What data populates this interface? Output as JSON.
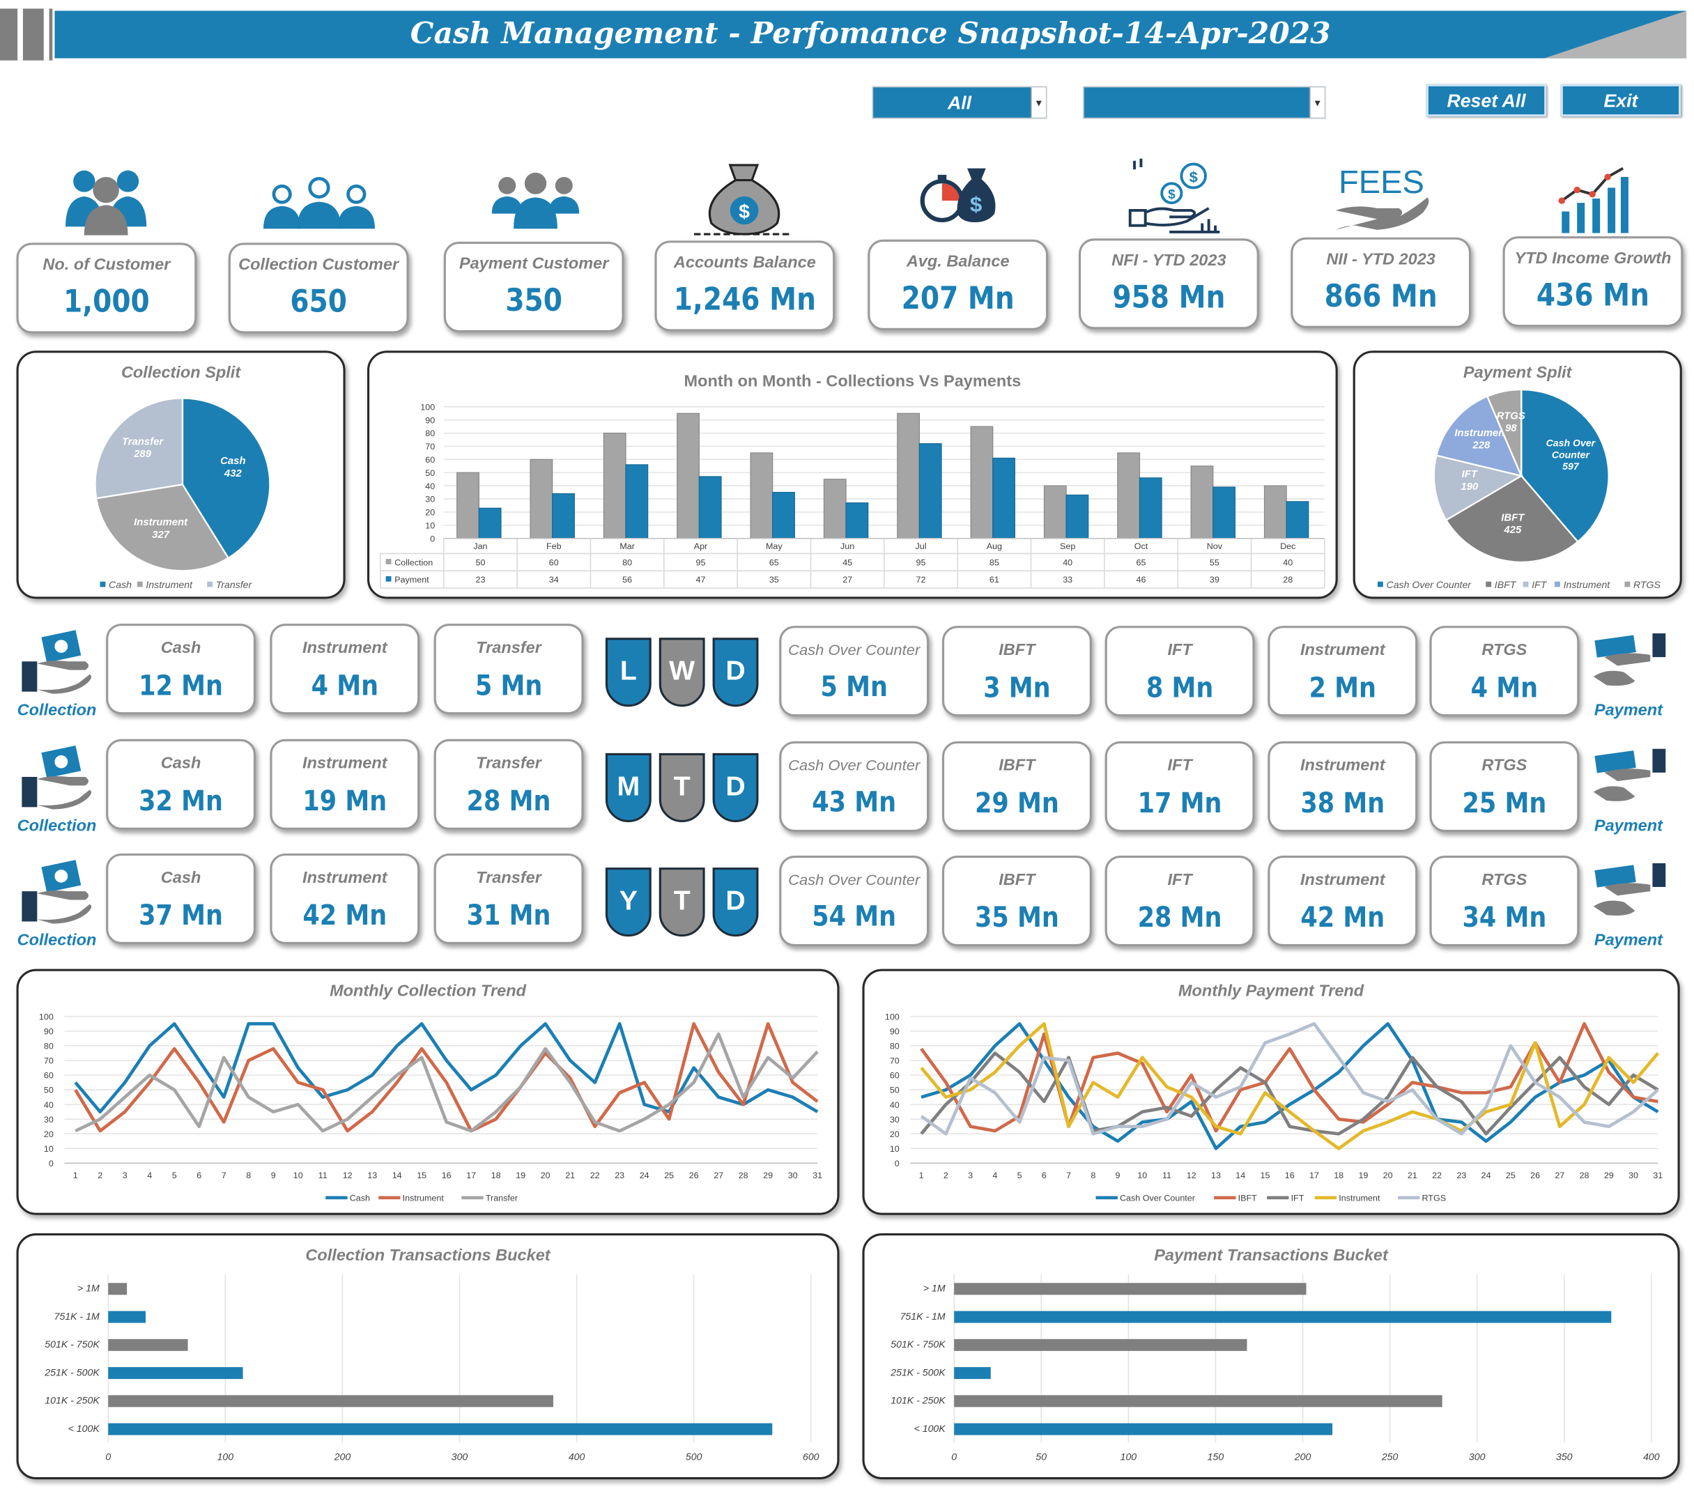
{
  "header": {
    "title": "Cash Management - Perfomance Snapshot-14-Apr-2023"
  },
  "filters": {
    "filter1": "All",
    "filter2": "",
    "reset": "Reset All",
    "exit": "Exit"
  },
  "kpis": [
    {
      "label": "No. of Customer",
      "value": "1,000",
      "icon": "customers-icon"
    },
    {
      "label": "Collection Customer",
      "value": "650",
      "icon": "collection-customers-icon"
    },
    {
      "label": "Payment Customer",
      "value": "350",
      "icon": "payment-customers-icon"
    },
    {
      "label": "Accounts Balance",
      "value": "1,246 Mn",
      "icon": "money-bag-icon"
    },
    {
      "label": "Avg. Balance",
      "value": "207 Mn",
      "icon": "stopwatch-money-icon"
    },
    {
      "label": "NFI - YTD 2023",
      "value": "958 Mn",
      "icon": "hand-coins-icon"
    },
    {
      "label": "NII - YTD 2023",
      "value": "866 Mn",
      "icon": "fees-hand-icon",
      "icon_text": "FEES"
    },
    {
      "label": "YTD Income Growth",
      "value": "436 Mn",
      "icon": "growth-chart-icon"
    }
  ],
  "periods": [
    {
      "letters": [
        "L",
        "W",
        "D"
      ],
      "collection_label": "Collection",
      "payment_label": "Payment",
      "collection": [
        {
          "label": "Cash",
          "value": "12 Mn"
        },
        {
          "label": "Instrument",
          "value": "4 Mn"
        },
        {
          "label": "Transfer",
          "value": "5 Mn"
        }
      ],
      "payment": [
        {
          "label": "Cash Over Counter",
          "value": "5 Mn"
        },
        {
          "label": "IBFT",
          "value": "3 Mn"
        },
        {
          "label": "IFT",
          "value": "8 Mn"
        },
        {
          "label": "Instrument",
          "value": "2 Mn"
        },
        {
          "label": "RTGS",
          "value": "4 Mn"
        }
      ]
    },
    {
      "letters": [
        "M",
        "T",
        "D"
      ],
      "collection_label": "Collection",
      "payment_label": "Payment",
      "collection": [
        {
          "label": "Cash",
          "value": "32 Mn"
        },
        {
          "label": "Instrument",
          "value": "19 Mn"
        },
        {
          "label": "Transfer",
          "value": "28 Mn"
        }
      ],
      "payment": [
        {
          "label": "Cash Over Counter",
          "value": "43 Mn"
        },
        {
          "label": "IBFT",
          "value": "29 Mn"
        },
        {
          "label": "IFT",
          "value": "17 Mn"
        },
        {
          "label": "Instrument",
          "value": "38 Mn"
        },
        {
          "label": "RTGS",
          "value": "25 Mn"
        }
      ]
    },
    {
      "letters": [
        "Y",
        "T",
        "D"
      ],
      "collection_label": "Collection",
      "payment_label": "Payment",
      "collection": [
        {
          "label": "Cash",
          "value": "37 Mn"
        },
        {
          "label": "Instrument",
          "value": "42 Mn"
        },
        {
          "label": "Transfer",
          "value": "31 Mn"
        }
      ],
      "payment": [
        {
          "label": "Cash Over Counter",
          "value": "54 Mn"
        },
        {
          "label": "IBFT",
          "value": "35 Mn"
        },
        {
          "label": "IFT",
          "value": "28 Mn"
        },
        {
          "label": "Instrument",
          "value": "42 Mn"
        },
        {
          "label": "RTGS",
          "value": "34 Mn"
        }
      ]
    }
  ],
  "chart_data": [
    {
      "id": "collection-split",
      "type": "pie",
      "title": "Collection Split",
      "slices": [
        {
          "label": "Cash",
          "value": 432,
          "color": "#1b7fb4"
        },
        {
          "label": "Instrument",
          "value": 327,
          "color": "#a5a5a5"
        },
        {
          "label": "Transfer",
          "value": 289,
          "color": "#b4bfcf"
        }
      ],
      "legend": "bottom"
    },
    {
      "id": "mom-chart",
      "type": "bar",
      "title": "Month on Month - Collections Vs Payments",
      "categories": [
        "Jan",
        "Feb",
        "Mar",
        "Apr",
        "May",
        "Jun",
        "Jul",
        "Aug",
        "Sep",
        "Oct",
        "Nov",
        "Dec"
      ],
      "series": [
        {
          "name": "Collection",
          "color": "#a5a5a5",
          "values": [
            50,
            60,
            80,
            95,
            65,
            45,
            95,
            85,
            40,
            65,
            55,
            40
          ]
        },
        {
          "name": "Payment",
          "color": "#1b7fb4",
          "values": [
            23,
            34,
            56,
            47,
            35,
            27,
            72,
            61,
            33,
            46,
            39,
            28
          ]
        }
      ],
      "ylim": [
        0,
        100
      ],
      "yticks": [
        0,
        10,
        20,
        30,
        40,
        50,
        60,
        70,
        80,
        90,
        100
      ],
      "grid": true,
      "data_table": true
    },
    {
      "id": "payment-split",
      "type": "pie",
      "title": "Payment Split",
      "slices": [
        {
          "label": "Cash Over Counter",
          "value": 597,
          "color": "#1b7fb4"
        },
        {
          "label": "IBFT",
          "value": 425,
          "color": "#7f7f7f"
        },
        {
          "label": "IFT",
          "value": 190,
          "color": "#b4bfcf"
        },
        {
          "label": "Instrument",
          "value": 228,
          "color": "#8ea9db"
        },
        {
          "label": "RTGS",
          "value": 98,
          "color": "#a5a5a5"
        }
      ],
      "slice_labels": [
        "Cash Over\nCounter\n597",
        "IBFT\n425",
        "IFT\n190",
        "Instrument\n228",
        "RTGS\n98"
      ],
      "legend": "bottom"
    },
    {
      "id": "collection-trend",
      "type": "line",
      "title": "Monthly Collection Trend",
      "x": [
        1,
        2,
        3,
        4,
        5,
        6,
        7,
        8,
        9,
        10,
        11,
        12,
        13,
        14,
        15,
        16,
        17,
        18,
        19,
        20,
        21,
        22,
        23,
        24,
        25,
        26,
        27,
        28,
        29,
        30,
        31
      ],
      "ylim": [
        0,
        100
      ],
      "yticks": [
        0,
        10,
        20,
        30,
        40,
        50,
        60,
        70,
        80,
        90,
        100
      ],
      "grid": true,
      "legend": "bottom",
      "series": [
        {
          "name": "Cash",
          "color": "#1b7fb4",
          "values": [
            55,
            35,
            55,
            80,
            95,
            70,
            45,
            95,
            95,
            65,
            45,
            50,
            60,
            80,
            95,
            70,
            50,
            60,
            80,
            95,
            70,
            55,
            95,
            40,
            35,
            65,
            45,
            40,
            50,
            45,
            35
          ]
        },
        {
          "name": "Instrument",
          "color": "#d0694a",
          "values": [
            50,
            22,
            35,
            55,
            78,
            55,
            28,
            70,
            78,
            55,
            50,
            22,
            35,
            55,
            78,
            55,
            22,
            30,
            52,
            75,
            58,
            25,
            48,
            55,
            30,
            95,
            62,
            40,
            95,
            55,
            42
          ]
        },
        {
          "name": "Transfer",
          "color": "#a5a5a5",
          "values": [
            22,
            30,
            45,
            60,
            50,
            25,
            72,
            45,
            35,
            40,
            22,
            30,
            45,
            60,
            72,
            28,
            22,
            35,
            52,
            78,
            55,
            28,
            22,
            30,
            40,
            55,
            88,
            45,
            72,
            58,
            76
          ]
        }
      ]
    },
    {
      "id": "payment-trend",
      "type": "line",
      "title": "Monthly Payment Trend",
      "x": [
        1,
        2,
        3,
        4,
        5,
        6,
        7,
        8,
        9,
        10,
        11,
        12,
        13,
        14,
        15,
        16,
        17,
        18,
        19,
        20,
        21,
        22,
        23,
        24,
        25,
        26,
        27,
        28,
        29,
        30,
        31
      ],
      "ylim": [
        0,
        100
      ],
      "yticks": [
        0,
        10,
        20,
        30,
        40,
        50,
        60,
        70,
        80,
        90,
        100
      ],
      "grid": true,
      "legend": "bottom",
      "series": [
        {
          "name": "Cash Over Counter",
          "color": "#1b7fb4",
          "values": [
            45,
            50,
            60,
            80,
            95,
            70,
            45,
            25,
            15,
            28,
            30,
            42,
            10,
            25,
            28,
            40,
            50,
            62,
            80,
            95,
            70,
            30,
            28,
            15,
            28,
            45,
            55,
            60,
            70,
            45,
            35
          ]
        },
        {
          "name": "IBFT",
          "color": "#d0694a",
          "values": [
            78,
            55,
            25,
            22,
            32,
            88,
            25,
            72,
            75,
            68,
            35,
            60,
            22,
            50,
            55,
            78,
            50,
            30,
            28,
            40,
            55,
            52,
            48,
            48,
            52,
            82,
            55,
            95,
            62,
            45,
            42
          ]
        },
        {
          "name": "IFT",
          "color": "#7f7f7f",
          "values": [
            20,
            40,
            55,
            75,
            62,
            42,
            72,
            22,
            25,
            35,
            38,
            32,
            50,
            65,
            55,
            25,
            22,
            20,
            30,
            45,
            72,
            52,
            42,
            20,
            38,
            55,
            72,
            52,
            40,
            60,
            50
          ]
        },
        {
          "name": "Instrument",
          "color": "#e3b92a",
          "values": [
            65,
            45,
            50,
            62,
            80,
            95,
            25,
            55,
            45,
            72,
            52,
            45,
            25,
            20,
            48,
            35,
            22,
            10,
            22,
            28,
            35,
            30,
            22,
            35,
            40,
            82,
            25,
            40,
            72,
            55,
            75
          ]
        },
        {
          "name": "RTGS",
          "color": "#b4bfcf",
          "values": [
            32,
            20,
            58,
            48,
            28,
            72,
            70,
            20,
            25,
            25,
            30,
            55,
            45,
            52,
            82,
            88,
            95,
            72,
            48,
            42,
            50,
            30,
            20,
            38,
            80,
            55,
            45,
            28,
            25,
            35,
            50
          ]
        }
      ]
    },
    {
      "id": "collection-bucket",
      "type": "bar",
      "orientation": "horizontal",
      "title": "Collection Transactions Bucket",
      "categories": [
        "> 1M",
        "751K - 1M",
        "501K - 750K",
        "251K - 500K",
        "101K - 250K",
        "< 100K"
      ],
      "values": [
        16,
        32,
        68,
        115,
        380,
        567
      ],
      "colors": [
        "#7f7f7f",
        "#1b7fb4",
        "#7f7f7f",
        "#1b7fb4",
        "#7f7f7f",
        "#1b7fb4"
      ],
      "xlim": [
        0,
        600
      ],
      "xticks": [
        0,
        100,
        200,
        300,
        400,
        500,
        600
      ],
      "grid": true
    },
    {
      "id": "payment-bucket",
      "type": "bar",
      "orientation": "horizontal",
      "title": "Payment Transactions Bucket",
      "categories": [
        "> 1M",
        "751K - 1M",
        "501K - 750K",
        "251K - 500K",
        "101K - 250K",
        "< 100K"
      ],
      "values": [
        202,
        377,
        168,
        21,
        280,
        217
      ],
      "colors": [
        "#7f7f7f",
        "#1b7fb4",
        "#7f7f7f",
        "#1b7fb4",
        "#7f7f7f",
        "#1b7fb4"
      ],
      "xlim": [
        0,
        400
      ],
      "xticks": [
        0,
        50,
        100,
        150,
        200,
        250,
        300,
        350,
        400
      ],
      "grid": true
    }
  ]
}
